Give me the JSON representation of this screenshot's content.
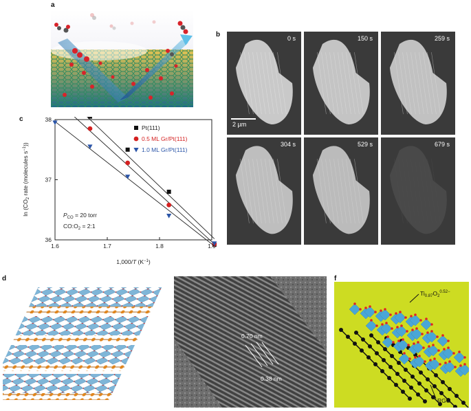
{
  "panels": {
    "a": {
      "label": "a"
    },
    "b": {
      "label": "b",
      "frames": [
        {
          "time": "0 s"
        },
        {
          "time": "150 s"
        },
        {
          "time": "259 s"
        },
        {
          "time": "304 s"
        },
        {
          "time": "529 s"
        },
        {
          "time": "679 s"
        }
      ],
      "fraction_remaining": [
        1.0,
        0.97,
        0.95,
        0.93,
        0.9,
        0.1
      ],
      "scalebar": "2 µm"
    },
    "c": {
      "label": "c"
    },
    "d": {
      "label": "d"
    },
    "e": {
      "label": "e",
      "annotation1": "0.70 nm",
      "annotation2": "0.38 nm"
    },
    "f": {
      "label": "f",
      "label_top_main": "Ti",
      "label_top_sub": "0.87",
      "label_top_o": "O",
      "label_top_sub2": "2",
      "label_top_sup": "0.52−",
      "label_bottom": "RGO"
    }
  },
  "chart_data": {
    "type": "scatter",
    "xlabel_pre": "1,000/",
    "xlabel_var": "T",
    "xlabel_post": " (K",
    "xlabel_exp": "−1",
    "xlabel_end": ")",
    "ylabel_pre": "ln (CO",
    "ylabel_sub": "2",
    "ylabel_mid": " rate (molecules s",
    "ylabel_exp": "−1",
    "ylabel_end": "))",
    "xlim": [
      1.6,
      1.9
    ],
    "ylim": [
      36,
      38
    ],
    "xticks": [
      "1.6",
      "1.7",
      "1.8",
      "1.9"
    ],
    "yticks": [
      "36",
      "37",
      "38"
    ],
    "annotation_p_pre": "P",
    "annotation_p_sub": "CO",
    "annotation_p_post": " = 20 torr",
    "annotation_ratio": "CO:O",
    "annotation_ratio_sub": "2",
    "annotation_ratio_post": " = 2:1",
    "series": [
      {
        "name": "Pt(111)",
        "marker": "square",
        "color": "#111111",
        "label_color": "#222222",
        "x": [
          1.6,
          1.667,
          1.739,
          1.818,
          1.905
        ],
        "y": [
          38.45,
          38.05,
          37.5,
          36.8,
          35.92
        ]
      },
      {
        "name": "0.5 ML Gr/Pt(111)",
        "marker": "circle",
        "color": "#d42020",
        "label_color": "#d42020",
        "x": [
          1.6,
          1.667,
          1.739,
          1.818,
          1.905
        ],
        "y": [
          38.3,
          37.85,
          37.28,
          36.58,
          35.93
        ]
      },
      {
        "name": "1.0 ML Gr/Pt(111)",
        "marker": "triangle",
        "color": "#2b55a8",
        "label_color": "#2b55a8",
        "x": [
          1.6,
          1.667,
          1.739,
          1.818,
          1.905
        ],
        "y": [
          37.95,
          37.55,
          37.05,
          36.4,
          35.94
        ]
      }
    ]
  }
}
